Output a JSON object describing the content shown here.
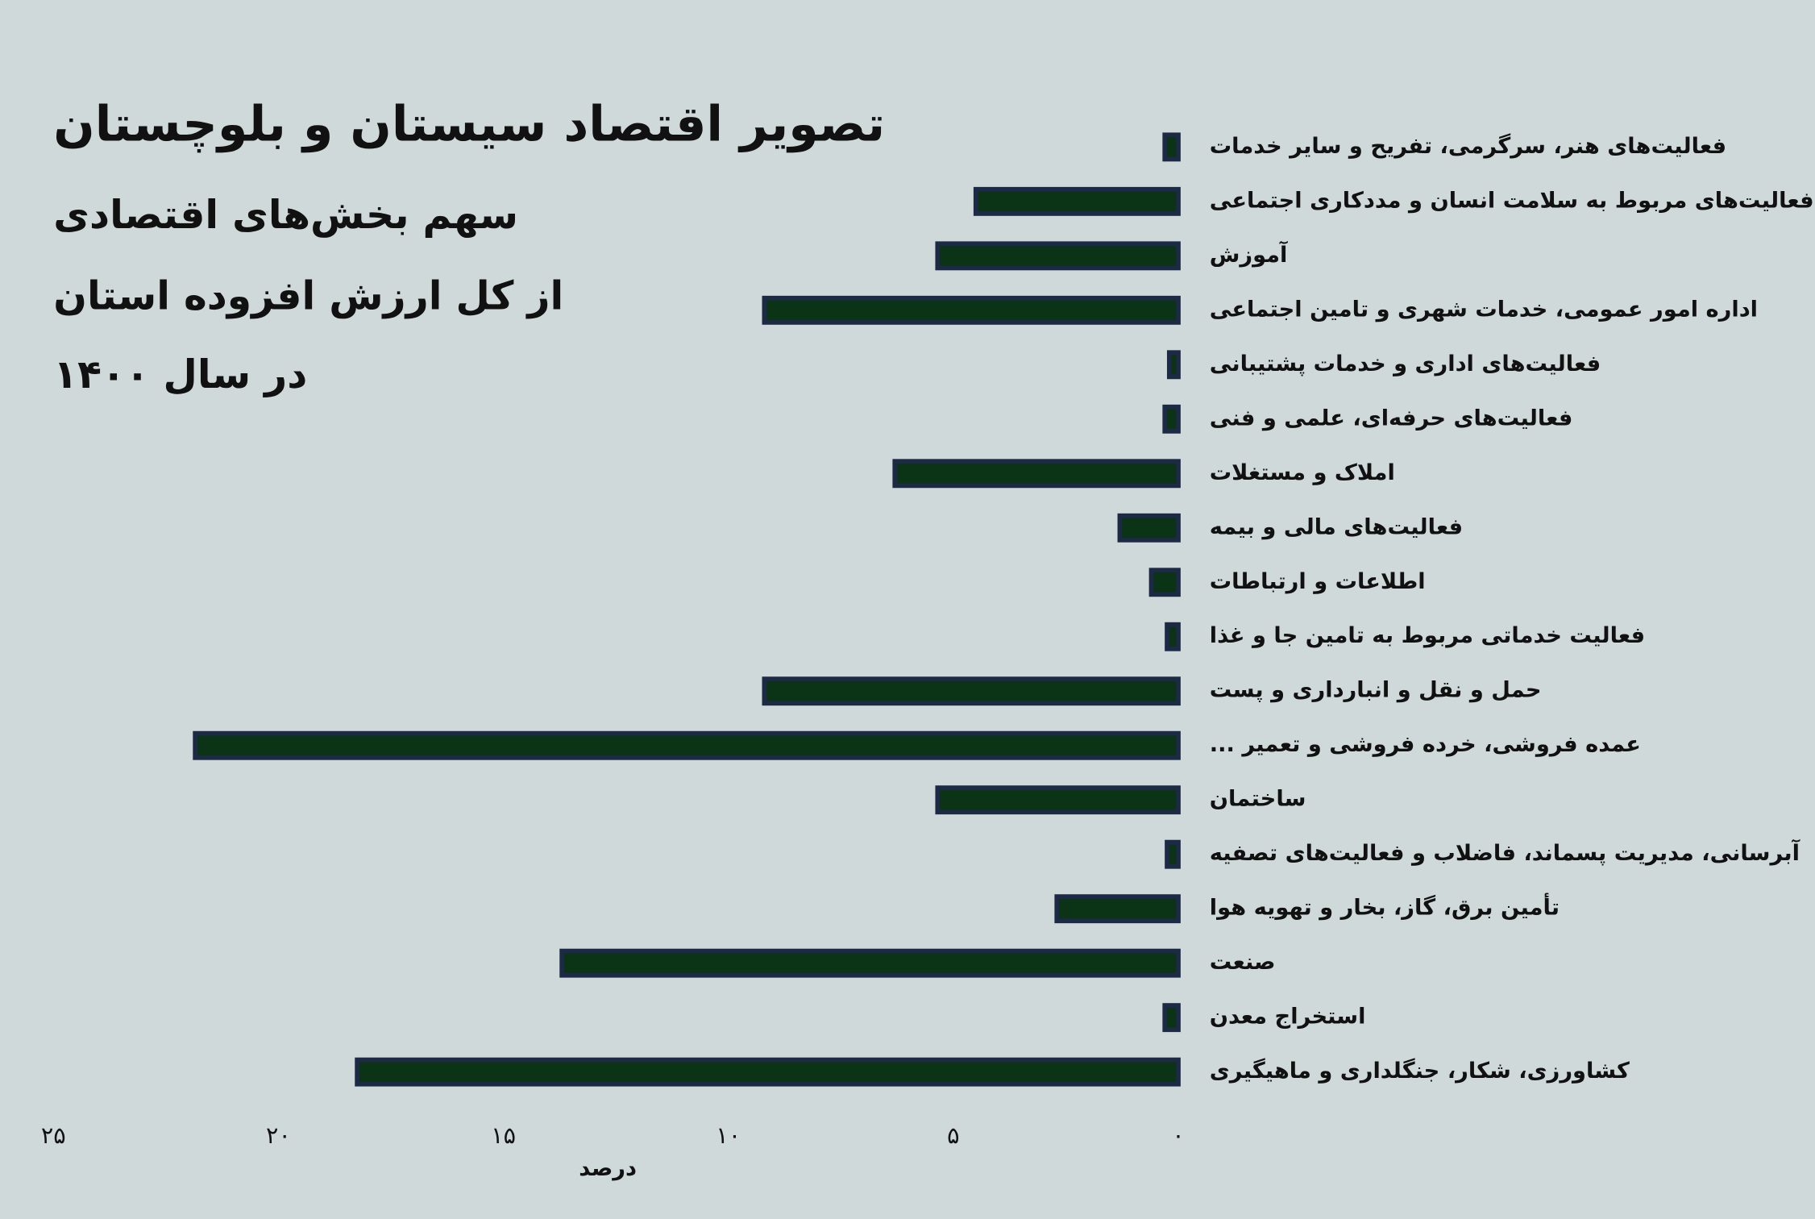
{
  "chart_data": {
    "type": "bar",
    "orientation": "horizontal",
    "x_reversed": true,
    "title": "تصویر اقتصاد سیستان و بلوچستان",
    "subtitle_lines": [
      "سهم بخش‌های اقتصادی",
      "از کل ارزش افزوده استان",
      "در سال ۱۴۰۰"
    ],
    "x_label": "درصد",
    "categories": [
      "فعالیت‌های هنر، سرگرمی، تفریح و سایر خدمات",
      "فعالیت‌های مربوط به سلامت انسان و مددکاری اجتماعی",
      "آموزش",
      "اداره امور عمومی، خدمات شهری و تامین اجتماعی",
      "فعالیت‌های اداری و خدمات پشتیبانی",
      "فعالیت‌های حرفه‌ای، علمی و فنی",
      "املاک و مستغلات",
      "فعالیت‌های مالی و بیمه",
      "اطلاعات و ارتباطات",
      "فعالیت خدماتی مربوط به تامین جا و غذا",
      "حمل و نقل و انبارداری و پست",
      "عمده فروشی، خرده فروشی و تعمیر ...",
      "ساختمان",
      "آبرسانی، مدیریت پسماند، فاضلاب و فعالیت‌های تصفیه",
      "تأمین برق، گاز، بخار و تهویه هوا",
      "صنعت",
      "استخراج معدن",
      "کشاورزی، شکار، جنگلداری و ماهیگیری"
    ],
    "values": [
      0.3,
      4.5,
      5.35,
      9.2,
      0.2,
      0.3,
      6.3,
      1.3,
      0.6,
      0.25,
      9.2,
      21.85,
      5.35,
      0.25,
      2.7,
      13.7,
      0.3,
      18.25
    ],
    "color": "#0b3316",
    "edge_color": "#1c2a45",
    "xlim": [
      0,
      25
    ],
    "xticks": [
      {
        "value": 0,
        "label": "۰"
      },
      {
        "value": 5,
        "label": "۵"
      },
      {
        "value": 10,
        "label": "۱۰"
      },
      {
        "value": 15,
        "label": "۱۵"
      },
      {
        "value": 20,
        "label": "۲۰"
      },
      {
        "value": 25,
        "label": "۲۵"
      }
    ]
  }
}
